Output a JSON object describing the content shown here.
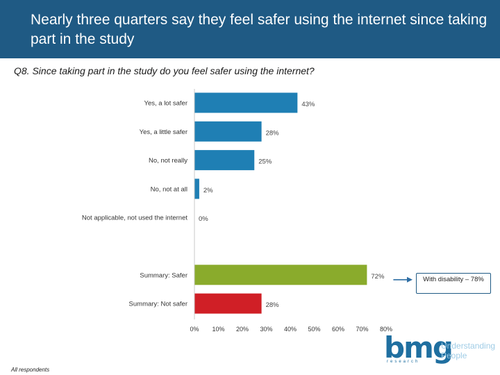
{
  "slide": {
    "title": "Nearly three quarters say they feel safer using the internet since taking part in the study",
    "question": "Q8. Since taking part in the study do you feel safer using the internet?",
    "callout": "With disability – 78%",
    "footnote": "All respondents",
    "logo": {
      "wordmark": "bmg",
      "subtext": "research",
      "tagline": "Understanding People"
    }
  },
  "chart_data": {
    "type": "bar",
    "orientation": "horizontal",
    "title": "",
    "xlabel": "",
    "ylabel": "",
    "xlim": [
      0,
      80
    ],
    "xticks": [
      0,
      10,
      20,
      30,
      40,
      50,
      60,
      70,
      80
    ],
    "tick_suffix": "%",
    "bars": [
      {
        "label": "Yes, a lot safer",
        "value": 43,
        "color": "#1f7fb4"
      },
      {
        "label": "Yes, a little safer",
        "value": 28,
        "color": "#1f7fb4"
      },
      {
        "label": "No, not really",
        "value": 25,
        "color": "#1f7fb4"
      },
      {
        "label": "No, not at all",
        "value": 2,
        "color": "#1f7fb4"
      },
      {
        "label": "Not applicable, not used the internet",
        "value": 0,
        "color": "#1f7fb4"
      },
      {
        "label": "",
        "value": null,
        "color": null
      },
      {
        "label": "Summary: Safer",
        "value": 72,
        "color": "#8aab2c"
      },
      {
        "label": "Summary: Not safer",
        "value": 28,
        "color": "#d01f26"
      }
    ]
  }
}
